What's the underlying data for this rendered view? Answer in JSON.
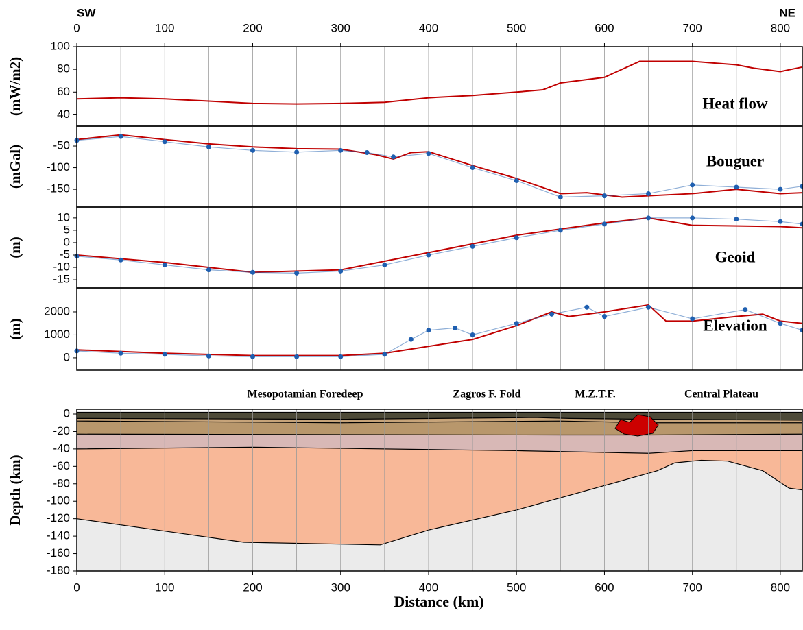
{
  "chart_data": [
    {
      "type": "line",
      "title": "Heat flow",
      "ylabel": "(mW/m2)",
      "left_label": "SW",
      "right_label": "NE",
      "xlim": [
        0,
        825
      ],
      "xticks": [
        0,
        100,
        200,
        300,
        400,
        500,
        600,
        700,
        800
      ],
      "xgrid": [
        50,
        100,
        150,
        200,
        250,
        300,
        350,
        400,
        450,
        500,
        550,
        600,
        650,
        700,
        750,
        800
      ],
      "ylim": [
        30,
        100
      ],
      "yticks": [
        40,
        60,
        80,
        100
      ],
      "series": [
        {
          "color": "#c00000",
          "marker": false,
          "x": [
            0,
            50,
            100,
            150,
            200,
            250,
            300,
            350,
            400,
            450,
            500,
            530,
            550,
            600,
            640,
            700,
            750,
            770,
            780,
            800,
            825
          ],
          "values": [
            54,
            55,
            54,
            52,
            50,
            49.5,
            50,
            51,
            55,
            57,
            60,
            62,
            68,
            73,
            87,
            87,
            84,
            81,
            80,
            78,
            82
          ]
        }
      ]
    },
    {
      "type": "line",
      "title": "Bouguer",
      "ylabel": "(mGal)",
      "xlim": [
        0,
        825
      ],
      "ylim": [
        -191,
        -4
      ],
      "yticks": [
        -50,
        -100,
        -150
      ],
      "series": [
        {
          "color": "#c00000",
          "marker": false,
          "x": [
            0,
            50,
            100,
            150,
            200,
            250,
            300,
            340,
            360,
            380,
            400,
            450,
            500,
            550,
            580,
            620,
            700,
            750,
            800,
            825
          ],
          "values": [
            -35,
            -24,
            -35,
            -45,
            -52,
            -56,
            -57,
            -70,
            -80,
            -65,
            -63,
            -95,
            -125,
            -160,
            -158,
            -168,
            -160,
            -150,
            -160,
            -158
          ]
        },
        {
          "color": "#1f5fb0",
          "marker": true,
          "x": [
            0,
            50,
            100,
            150,
            200,
            250,
            300,
            330,
            360,
            400,
            450,
            500,
            550,
            600,
            650,
            700,
            750,
            800,
            825
          ],
          "values": [
            -37,
            -28,
            -40,
            -52,
            -60,
            -64,
            -60,
            -65,
            -75,
            -67,
            -100,
            -130,
            -168,
            -165,
            -160,
            -140,
            -145,
            -150,
            -143
          ]
        }
      ]
    },
    {
      "type": "line",
      "title": "Geoid",
      "ylabel": "(m)",
      "xlim": [
        0,
        825
      ],
      "ylim": [
        -18.3,
        14.4
      ],
      "yticks": [
        10,
        5,
        0,
        -5,
        -10,
        -15
      ],
      "series": [
        {
          "color": "#c00000",
          "marker": false,
          "x": [
            0,
            100,
            200,
            300,
            400,
            500,
            600,
            650,
            700,
            800,
            825
          ],
          "values": [
            -5,
            -8,
            -12,
            -11,
            -4,
            3,
            8,
            10,
            7,
            6.5,
            6
          ]
        },
        {
          "color": "#1f5fb0",
          "marker": true,
          "x": [
            0,
            50,
            100,
            150,
            200,
            250,
            300,
            350,
            400,
            450,
            500,
            550,
            600,
            650,
            700,
            750,
            800,
            825
          ],
          "values": [
            -5.5,
            -7,
            -9,
            -11,
            -12,
            -12.3,
            -11.5,
            -9,
            -5,
            -1.5,
            2,
            5,
            7.5,
            10,
            10,
            9.5,
            8.5,
            7.5
          ]
        }
      ]
    },
    {
      "type": "line",
      "title": "Elevation",
      "ylabel": "(m)",
      "xlim": [
        0,
        825
      ],
      "ylim": [
        -540,
        3045
      ],
      "yticks": [
        0,
        1000,
        2000
      ],
      "series": [
        {
          "color": "#c00000",
          "marker": false,
          "x": [
            0,
            100,
            200,
            300,
            350,
            400,
            450,
            500,
            540,
            560,
            600,
            650,
            670,
            700,
            750,
            780,
            800,
            825
          ],
          "values": [
            350,
            200,
            100,
            100,
            200,
            500,
            800,
            1400,
            2000,
            1800,
            2000,
            2300,
            1600,
            1600,
            1800,
            1900,
            1600,
            1500
          ]
        },
        {
          "color": "#1f5fb0",
          "marker": true,
          "x": [
            0,
            50,
            100,
            150,
            200,
            250,
            300,
            350,
            380,
            400,
            430,
            450,
            500,
            540,
            580,
            600,
            650,
            700,
            760,
            800,
            825
          ],
          "values": [
            300,
            200,
            150,
            80,
            50,
            50,
            50,
            150,
            800,
            1200,
            1300,
            1000,
            1500,
            1900,
            2200,
            1800,
            2200,
            1700,
            2100,
            1500,
            1200
          ]
        }
      ]
    },
    {
      "type": "section",
      "ylabel": "Depth  (km)",
      "xlabel": "Distance (km)",
      "annotations": [
        "Mesopotamian Foredeep",
        "Zagros F. Fold",
        "M.Z.T.F.",
        "Central Plateau"
      ],
      "xlim": [
        0,
        825
      ],
      "xticks": [
        0,
        100,
        200,
        300,
        400,
        500,
        600,
        700,
        800
      ],
      "ylim": [
        -180,
        5.5
      ],
      "yticks": [
        0,
        -20,
        -40,
        -60,
        -80,
        -100,
        -120,
        -140,
        -160,
        -180
      ],
      "boundaries": [
        {
          "color": "#4d4a38",
          "x": [
            0,
            825
          ],
          "values": [
            2,
            2
          ]
        },
        {
          "color": "#c7a47a",
          "x": [
            0,
            300,
            520,
            560,
            650,
            825
          ],
          "values": [
            -5,
            -6,
            -4,
            -5,
            -6,
            -7
          ]
        },
        {
          "color": "#b8976c",
          "x": [
            0,
            300,
            550,
            650,
            825
          ],
          "values": [
            -8,
            -10,
            -8,
            -10,
            -10
          ]
        },
        {
          "color": "#d8b8b6",
          "x": [
            0,
            550,
            650,
            825
          ],
          "values": [
            -23,
            -24,
            -24,
            -23
          ]
        },
        {
          "color": "#f8b898",
          "x": [
            0,
            200,
            500,
            650,
            700,
            825
          ],
          "values": [
            -40,
            -38,
            -42,
            -45,
            -42,
            -42
          ]
        },
        {
          "color": "#ebebeb",
          "x": [
            0,
            190,
            345,
            400,
            500,
            600,
            660,
            680,
            710,
            740,
            780,
            810,
            825
          ],
          "values": [
            -120,
            -147,
            -150,
            -133,
            -110,
            -82,
            -65,
            -56,
            -53,
            -54,
            -65,
            -85,
            -87
          ]
        }
      ]
    }
  ]
}
